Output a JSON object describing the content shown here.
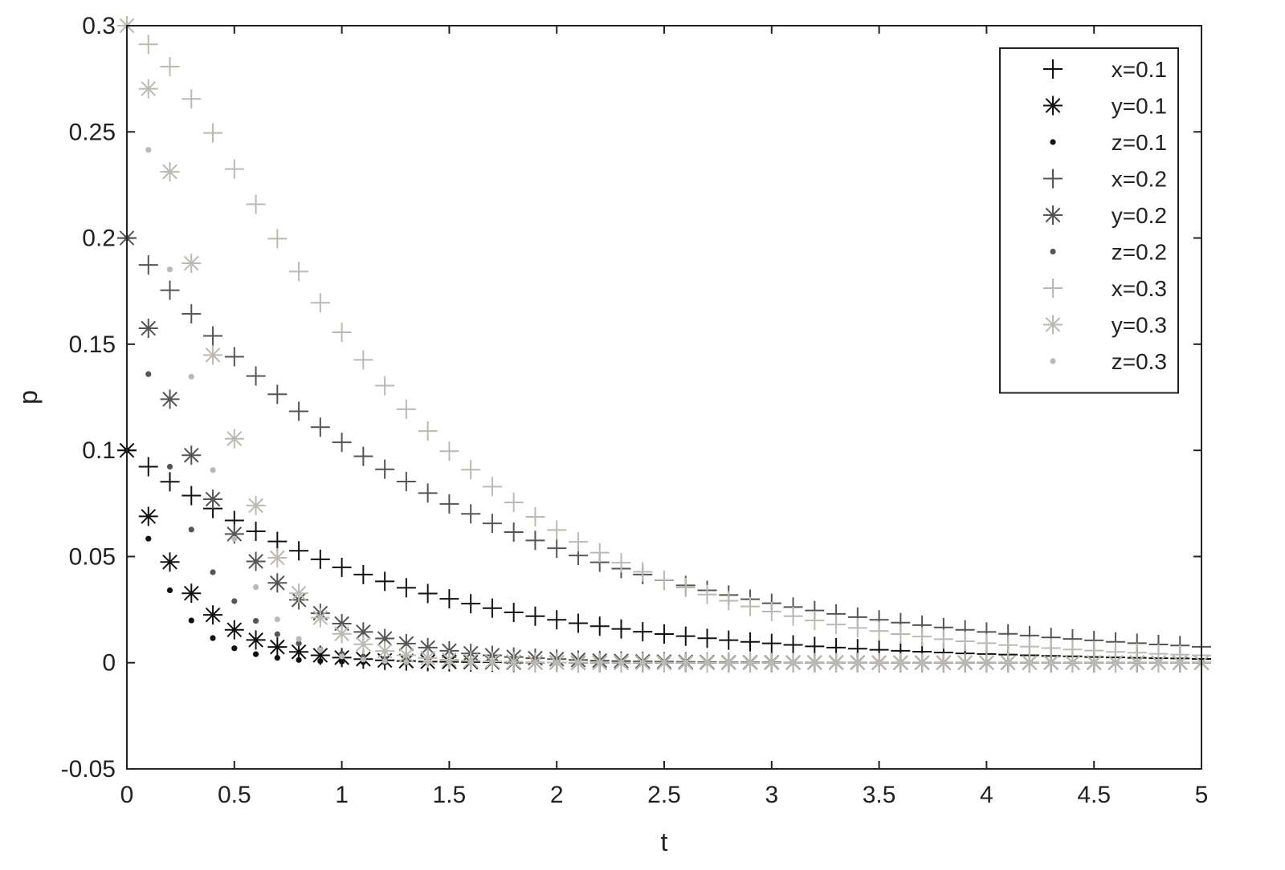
{
  "chart_data": {
    "type": "scatter",
    "xlabel": "t",
    "ylabel": "p",
    "xlim": [
      0,
      5
    ],
    "ylim": [
      -0.05,
      0.3
    ],
    "xticks": [
      "0",
      "0.5",
      "1",
      "1.5",
      "2",
      "2.5",
      "3",
      "3.5",
      "4",
      "4.5",
      "5"
    ],
    "yticks": [
      "-0.05",
      "0",
      "0.05",
      "0.1",
      "0.15",
      "0.2",
      "0.25",
      "0.3"
    ],
    "grid": false,
    "legend_position": "top-right",
    "colors": {
      "dark": "#111111",
      "mid": "#555555",
      "light": "#bbb9b2"
    },
    "t": [
      0,
      0.1,
      0.2,
      0.3,
      0.4,
      0.5,
      0.6,
      0.7,
      0.8,
      0.9,
      1.0,
      1.1,
      1.2,
      1.3,
      1.4,
      1.5,
      1.6,
      1.7,
      1.8,
      1.9,
      2.0,
      2.1,
      2.2,
      2.3,
      2.4,
      2.5,
      2.6,
      2.7,
      2.8,
      2.9,
      3.0,
      3.1,
      3.2,
      3.3,
      3.4,
      3.5,
      3.6,
      3.7,
      3.8,
      3.9,
      4.0,
      4.1,
      4.2,
      4.3,
      4.4,
      4.5,
      4.6,
      4.7,
      4.8,
      4.9,
      5.0
    ],
    "series": [
      {
        "name": "x=0.1",
        "marker": "plus",
        "shade": "dark",
        "values": [
          0.1,
          0.0923,
          0.0852,
          0.0787,
          0.0726,
          0.067,
          0.0619,
          0.0571,
          0.0527,
          0.0487,
          0.0449,
          0.0415,
          0.0383,
          0.0353,
          0.0326,
          0.0301,
          0.0278,
          0.0257,
          0.0237,
          0.0219,
          0.0202,
          0.0186,
          0.0172,
          0.0159,
          0.0146,
          0.0135,
          0.0125,
          0.0115,
          0.0106,
          0.0098,
          0.0091,
          0.0084,
          0.0077,
          0.0071,
          0.0066,
          0.0061,
          0.0056,
          0.0052,
          0.0048,
          0.0044,
          0.0041,
          0.0038,
          0.0035,
          0.0032,
          0.003,
          0.0027,
          0.0025,
          0.0023,
          0.0021,
          0.002,
          0.0018
        ]
      },
      {
        "name": "y=0.1",
        "marker": "star",
        "shade": "dark",
        "values": [
          0.1,
          0.0689,
          0.0474,
          0.0327,
          0.0225,
          0.0155,
          0.0107,
          0.0074,
          0.0051,
          0.0035,
          0.0024,
          0.0017,
          0.0011,
          0.0008,
          0.0005,
          0.0004,
          0.0003,
          0.0002,
          0.0001,
          0.0001,
          0.0001,
          0,
          0,
          0,
          0,
          0,
          0,
          0,
          0,
          0,
          0,
          0,
          0,
          0,
          0,
          0,
          0,
          0,
          0,
          0,
          0,
          0,
          0,
          0,
          0,
          0,
          0,
          0,
          0,
          0,
          0
        ]
      },
      {
        "name": "z=0.1",
        "marker": "dot",
        "shade": "dark",
        "values": [
          0.1,
          0.0584,
          0.0341,
          0.0199,
          0.0116,
          0.0068,
          0.004,
          0.0023,
          0.0013,
          0.0008,
          0.0005,
          0.0003,
          0.0002,
          0.0001,
          0,
          0,
          0,
          0,
          0,
          0,
          0,
          0,
          0,
          0,
          0,
          0,
          0,
          0,
          0,
          0,
          0,
          0,
          0,
          0,
          0,
          0,
          0,
          0,
          0,
          0,
          0,
          0,
          0,
          0,
          0,
          0,
          0,
          0,
          0,
          0,
          0
        ]
      },
      {
        "name": "x=0.2",
        "marker": "plus",
        "shade": "mid",
        "values": [
          0.2,
          0.1873,
          0.1754,
          0.1643,
          0.1539,
          0.1441,
          0.135,
          0.1264,
          0.1184,
          0.1109,
          0.1038,
          0.0972,
          0.0911,
          0.0853,
          0.0799,
          0.0748,
          0.0701,
          0.0656,
          0.0615,
          0.0576,
          0.0539,
          0.0505,
          0.0473,
          0.0443,
          0.0415,
          0.0388,
          0.0364,
          0.0341,
          0.0319,
          0.0299,
          0.028,
          0.0262,
          0.0246,
          0.023,
          0.0215,
          0.0202,
          0.0189,
          0.0177,
          0.0166,
          0.0155,
          0.0145,
          0.0136,
          0.0128,
          0.0119,
          0.0112,
          0.0105,
          0.0098,
          0.0092,
          0.0086,
          0.0081,
          0.0075
        ]
      },
      {
        "name": "y=0.2",
        "marker": "star",
        "shade": "mid",
        "values": [
          0.2,
          0.1575,
          0.1241,
          0.0977,
          0.077,
          0.0606,
          0.0477,
          0.0376,
          0.0296,
          0.0233,
          0.0184,
          0.0145,
          0.0114,
          0.009,
          0.0071,
          0.0056,
          0.0044,
          0.0035,
          0.0027,
          0.0021,
          0.0017,
          0.0013,
          0.001,
          0.0008,
          0.0006,
          0.0005,
          0.0004,
          0.0003,
          0.0002,
          0.0002,
          0.0002,
          0.0001,
          0.0001,
          0.0001,
          0.0001,
          0,
          0,
          0,
          0,
          0,
          0,
          0,
          0,
          0,
          0,
          0,
          0,
          0,
          0,
          0,
          0
        ]
      },
      {
        "name": "z=0.2",
        "marker": "dot",
        "shade": "mid",
        "values": [
          0.2,
          0.1359,
          0.0923,
          0.0627,
          0.0426,
          0.029,
          0.0197,
          0.0134,
          0.0091,
          0.0062,
          0.0042,
          0.0029,
          0.0019,
          0.0013,
          0.0009,
          0.0006,
          0.0004,
          0.0003,
          0.0002,
          0.0001,
          0.0001,
          0,
          0,
          0,
          0,
          0,
          0,
          0,
          0,
          0,
          0,
          0,
          0,
          0,
          0,
          0,
          0,
          0,
          0,
          0,
          0,
          0,
          0,
          0,
          0,
          0,
          0,
          0,
          0,
          0,
          0
        ]
      },
      {
        "name": "x=0.3",
        "marker": "plus",
        "shade": "light",
        "values": [
          0.3,
          0.2912,
          0.2807,
          0.2655,
          0.2495,
          0.2325,
          0.2159,
          0.1997,
          0.1842,
          0.1695,
          0.1556,
          0.1426,
          0.1305,
          0.1194,
          0.1091,
          0.0996,
          0.0909,
          0.0829,
          0.0755,
          0.0687,
          0.0625,
          0.0569,
          0.0518,
          0.0471,
          0.0428,
          0.0389,
          0.0354,
          0.0321,
          0.0292,
          0.0265,
          0.0241,
          0.0219,
          0.0199,
          0.018,
          0.0164,
          0.0149,
          0.0135,
          0.0123,
          0.0111,
          0.0101,
          0.0092,
          0.0083,
          0.0076,
          0.0069,
          0.0062,
          0.0057,
          0.0051,
          0.0047,
          0.0042,
          0.0038,
          0.0035
        ]
      },
      {
        "name": "y=0.3",
        "marker": "star",
        "shade": "light",
        "values": [
          0.3,
          0.2703,
          0.2312,
          0.1881,
          0.1449,
          0.1055,
          0.074,
          0.0494,
          0.0327,
          0.0212,
          0.0136,
          0.0087,
          0.0055,
          0.0035,
          0.0022,
          0.0014,
          0.0009,
          0.0006,
          0.0004,
          0.0002,
          0.0001,
          0.0001,
          0,
          0,
          0,
          0,
          0,
          0,
          0,
          0,
          0,
          0,
          0,
          0,
          0,
          0,
          0,
          0,
          0,
          0,
          0,
          0,
          0,
          0,
          0,
          0,
          0,
          0,
          0,
          0,
          0
        ]
      },
      {
        "name": "z=0.3",
        "marker": "dot",
        "shade": "light",
        "values": [
          0.3,
          0.2415,
          0.1852,
          0.1347,
          0.0907,
          0.0584,
          0.0356,
          0.0204,
          0.0112,
          0.0059,
          0.003,
          0.0015,
          0.0007,
          0.0003,
          0.0002,
          0.0001,
          0,
          0,
          0,
          0,
          0,
          0,
          0,
          0,
          0,
          0,
          0,
          0,
          0,
          0,
          0,
          0,
          0,
          0,
          0,
          0,
          0,
          0,
          0,
          0,
          0,
          0,
          0,
          0,
          0,
          0,
          0,
          0,
          0,
          0,
          0
        ]
      }
    ]
  }
}
